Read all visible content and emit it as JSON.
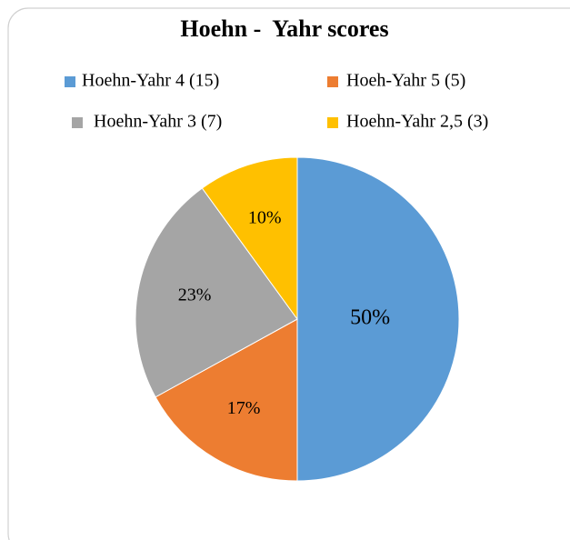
{
  "chart_data": {
    "type": "pie",
    "title": "Hoehn -  Yahr scores",
    "categories": [
      "Hoehn-Yahr 4 (15)",
      "Hoeh-Yahr 5 (5)",
      "Hoehn-Yahr 3 (7)",
      "Hoehn-Yahr 2,5 (3)"
    ],
    "values": [
      50,
      17,
      23,
      10
    ],
    "value_labels": [
      "50%",
      "17%",
      "23%",
      "10%"
    ],
    "colors": [
      "#5b9bd5",
      "#ed7d31",
      "#a5a5a5",
      "#ffc000"
    ],
    "legend": "top"
  }
}
